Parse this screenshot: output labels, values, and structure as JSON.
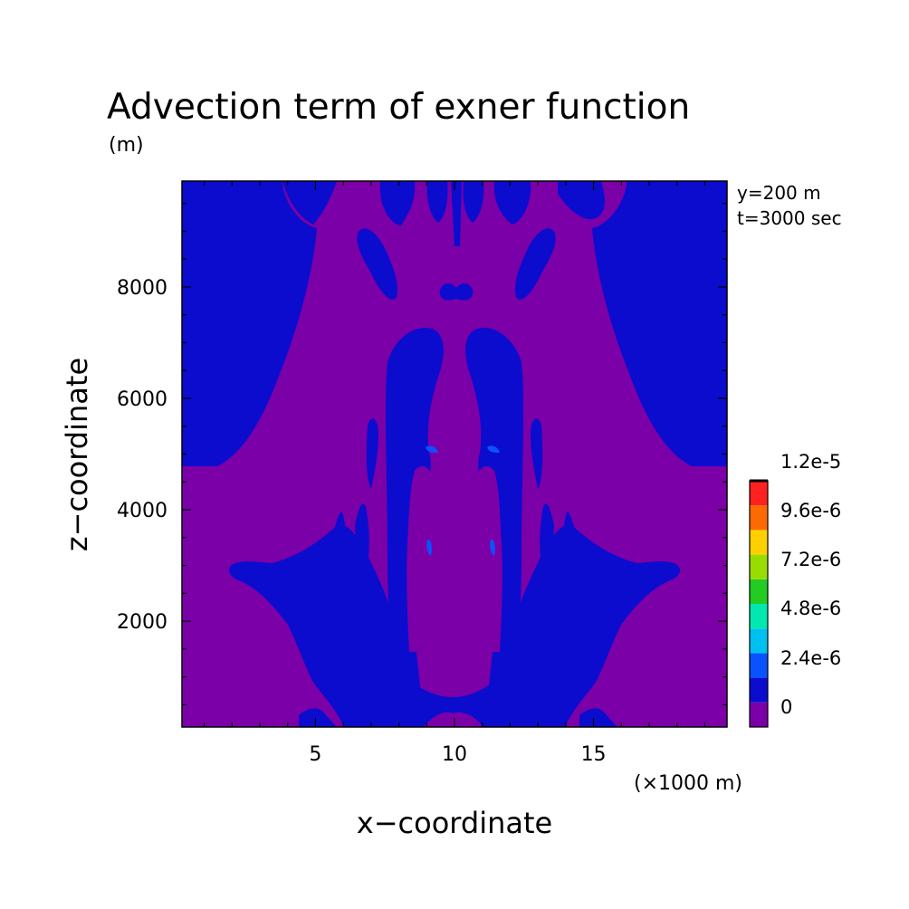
{
  "chart_data": {
    "type": "heatmap",
    "title": "Advection term of exner function",
    "ylabel_unit": "(m)",
    "xlabel": "x−coordinate",
    "ylabel": "z−coordinate",
    "x_unit": "(×1000 m)",
    "annotations": [
      "y=200 m",
      "t=3000 sec"
    ],
    "xlim": [
      0.2,
      19.8
    ],
    "ylim": [
      100,
      9900
    ],
    "x_ticks": [
      5,
      10,
      15
    ],
    "x_tick_labels": [
      "5",
      "10",
      "15"
    ],
    "y_ticks": [
      2000,
      4000,
      6000,
      8000
    ],
    "y_tick_labels": [
      "2000",
      "4000",
      "6000",
      "8000"
    ],
    "colorbar": {
      "levels": [
        "0",
        "2.4e-6",
        "4.8e-6",
        "7.2e-6",
        "9.6e-6",
        "1.2e-5"
      ],
      "colors": [
        "#7b00a8",
        "#0c0ccf",
        "#0a52ff",
        "#00c0f0",
        "#00e8b0",
        "#22cc22",
        "#99dd00",
        "#ffd000",
        "#ff6a00",
        "#ff2020"
      ]
    },
    "field_colors": {
      "below_zero": "#7b00a8",
      "zero_to_2.4e-6": "#0c0ccf",
      "2.4e-6_to_4.8e-6": "#0a52ff"
    }
  }
}
